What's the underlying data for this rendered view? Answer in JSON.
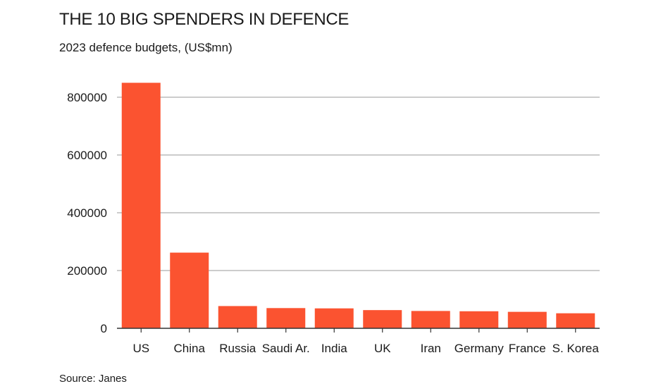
{
  "title": "THE 10 BIG SPENDERS IN DEFENCE",
  "subtitle": "2023 defence budgets, (US$mn)",
  "source": "Source: Janes",
  "colors": {
    "bar": "#fb5330",
    "grid": "#9a9a9a",
    "axis": "#333333"
  },
  "chart_data": {
    "type": "bar",
    "title": "THE 10 BIG SPENDERS IN DEFENCE",
    "subtitle": "2023 defence budgets, (US$mn)",
    "xlabel": "",
    "ylabel": "",
    "categories": [
      "US",
      "China",
      "Russia",
      "Saudi Ar.",
      "India",
      "UK",
      "Iran",
      "Germany",
      "France",
      "S. Korea"
    ],
    "values": [
      850000,
      262000,
      77000,
      70000,
      69000,
      63000,
      60000,
      59000,
      57000,
      52000
    ],
    "ylim": [
      0,
      800000
    ],
    "yticks": [
      0,
      200000,
      400000,
      600000,
      800000
    ],
    "grid": true,
    "legend": "none"
  }
}
